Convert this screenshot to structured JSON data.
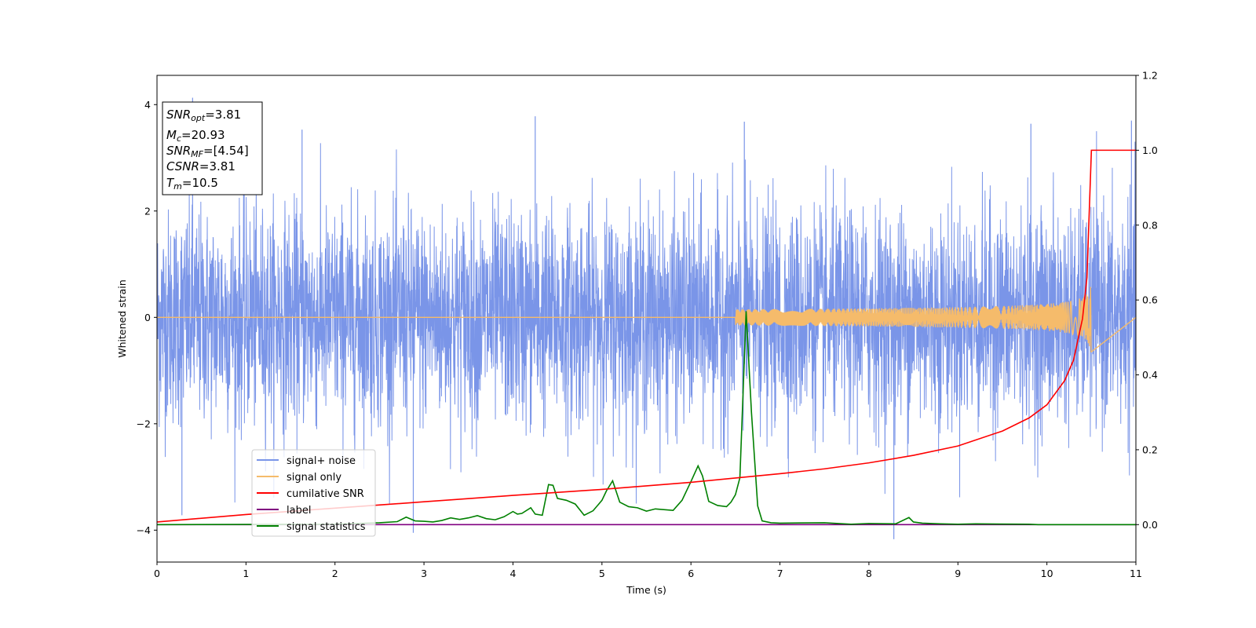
{
  "chart_data": {
    "type": "line",
    "xlabel": "Time (s)",
    "ylabel": "Whitened strain",
    "xlim": [
      0,
      11
    ],
    "ylim": [
      -4.6,
      4.55
    ],
    "y2lim": [
      -0.1,
      1.2
    ],
    "x_ticks": [
      "0",
      "1",
      "2",
      "3",
      "4",
      "5",
      "6",
      "7",
      "8",
      "9",
      "10",
      "11"
    ],
    "y_ticks": [
      "4",
      "2",
      "0",
      "−2",
      "−4"
    ],
    "y2_ticks": [
      "1.2",
      "1.0",
      "0.8",
      "0.6",
      "0.4",
      "0.2",
      "0.0"
    ],
    "grid": false,
    "legend_position": "lower-left",
    "annotation": {
      "snr_opt": {
        "base": "SNR",
        "sub": "opt",
        "value": "=3.81"
      },
      "mc": {
        "base": "M",
        "sub": "c",
        "value": "=20.93"
      },
      "snr_mf": {
        "base": "SNR",
        "sub": "MF",
        "value": "=[4.54]"
      },
      "csnr": {
        "base": "CSNR",
        "value": "=3.81"
      },
      "tm": {
        "base": "T",
        "sub": "m",
        "value": "=10.5"
      }
    },
    "series": [
      {
        "name": "signal+ noise",
        "axis": "left",
        "color": "#7a95e8",
        "description_values": "dense noise, typical amplitude ±2, peaks near ±4",
        "peaks": [
          [
            0.4,
            4.13
          ],
          [
            0.28,
            -3.72
          ],
          [
            2.88,
            -4.05
          ],
          [
            6.6,
            3.68
          ],
          [
            8.28,
            -4.17
          ],
          [
            9.82,
            3.64
          ],
          [
            10.95,
            3.7
          ],
          [
            1.63,
            3.53
          ],
          [
            4.25,
            3.78
          ]
        ]
      },
      {
        "name": "signal only",
        "axis": "left",
        "color": "#f5bb6b",
        "description_values": "chirp, zero until ~7 s, amplitude grows to ~0.85 at 10.5 s then zero",
        "merger_time": 10.5,
        "peak_amplitude": 0.85
      },
      {
        "name": "cumilative SNR",
        "axis": "right",
        "color": "#ff0000",
        "x": [
          0,
          1,
          2,
          3,
          4,
          5,
          6,
          7,
          7.5,
          8,
          8.5,
          9,
          9.5,
          9.8,
          10.0,
          10.2,
          10.3,
          10.4,
          10.45,
          10.5,
          11
        ],
        "values": [
          0.007,
          0.027,
          0.044,
          0.061,
          0.078,
          0.094,
          0.113,
          0.136,
          0.149,
          0.165,
          0.185,
          0.21,
          0.25,
          0.285,
          0.32,
          0.385,
          0.44,
          0.55,
          0.66,
          1.0,
          1.0
        ]
      },
      {
        "name": "label",
        "axis": "right",
        "color": "#800080",
        "x": [
          0,
          11
        ],
        "values": [
          0.0,
          0.0
        ]
      },
      {
        "name": "signal statistics",
        "axis": "right",
        "color": "#008000",
        "x": [
          0,
          2,
          2.5,
          2.7,
          2.8,
          2.9,
          3.0,
          3.1,
          3.2,
          3.3,
          3.4,
          3.5,
          3.6,
          3.7,
          3.8,
          3.9,
          4.0,
          4.05,
          4.1,
          4.2,
          4.25,
          4.33,
          4.4,
          4.45,
          4.5,
          4.6,
          4.7,
          4.8,
          4.9,
          5.0,
          5.05,
          5.12,
          5.2,
          5.3,
          5.4,
          5.5,
          5.6,
          5.8,
          5.9,
          6.0,
          6.08,
          6.13,
          6.2,
          6.3,
          6.4,
          6.45,
          6.5,
          6.55,
          6.62,
          6.68,
          6.75,
          6.8,
          6.9,
          7.0,
          7.5,
          7.8,
          8.0,
          8.3,
          8.45,
          8.5,
          8.6,
          8.8,
          9.0,
          9.2,
          9.8,
          9.9,
          11
        ],
        "values": [
          0.0,
          0.001,
          0.005,
          0.008,
          0.02,
          0.01,
          0.009,
          0.007,
          0.011,
          0.018,
          0.014,
          0.018,
          0.024,
          0.016,
          0.013,
          0.021,
          0.035,
          0.028,
          0.03,
          0.045,
          0.028,
          0.025,
          0.107,
          0.105,
          0.07,
          0.065,
          0.055,
          0.025,
          0.037,
          0.065,
          0.09,
          0.117,
          0.06,
          0.048,
          0.045,
          0.036,
          0.042,
          0.038,
          0.065,
          0.115,
          0.157,
          0.13,
          0.062,
          0.051,
          0.048,
          0.06,
          0.08,
          0.125,
          0.57,
          0.3,
          0.05,
          0.01,
          0.005,
          0.004,
          0.005,
          0.001,
          0.003,
          0.002,
          0.019,
          0.007,
          0.004,
          0.002,
          0.001,
          0.002,
          0.001,
          0.0,
          0.0
        ]
      }
    ]
  }
}
